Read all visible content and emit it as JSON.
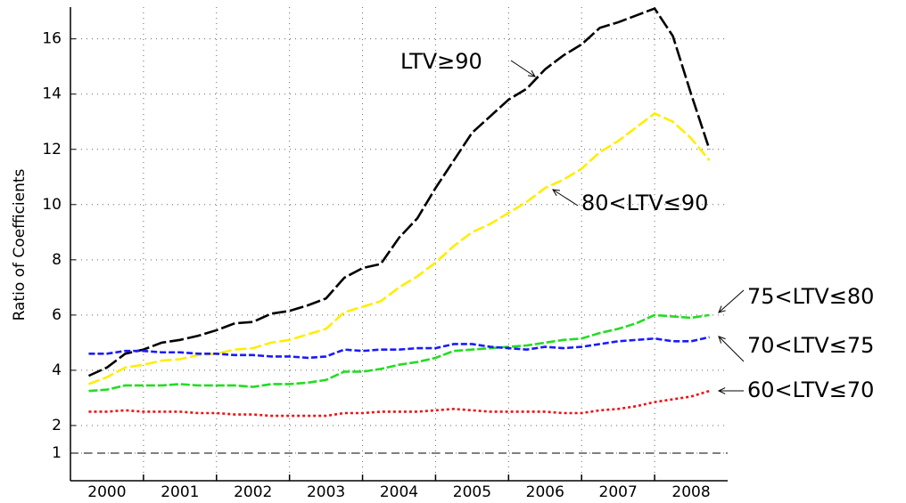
{
  "chart_data": {
    "type": "line",
    "y_label": "Ratio of Coefficients",
    "x": [
      2000.25,
      2000.5,
      2000.75,
      2001,
      2001.25,
      2001.5,
      2001.75,
      2002,
      2002.25,
      2002.5,
      2002.75,
      2003,
      2003.25,
      2003.5,
      2003.75,
      2004,
      2004.25,
      2004.5,
      2004.75,
      2005,
      2005.25,
      2005.5,
      2005.75,
      2006,
      2006.25,
      2006.5,
      2006.75,
      2007,
      2007.25,
      2007.5,
      2007.75,
      2008,
      2008.25,
      2008.5,
      2008.75
    ],
    "xlim": [
      2000,
      2009
    ],
    "xticks": [
      2000,
      2001,
      2002,
      2003,
      2004,
      2005,
      2006,
      2007,
      2008
    ],
    "ylim": [
      0,
      17.15
    ],
    "yticks": [
      1,
      2,
      4,
      6,
      8,
      10,
      12,
      14,
      16
    ],
    "reference_line": 1,
    "grid": true,
    "series": [
      {
        "name": "LTV≥90",
        "color": "#000000",
        "dash": "16,4",
        "values": [
          3.8,
          4.1,
          4.6,
          4.75,
          5.0,
          5.1,
          5.25,
          5.45,
          5.7,
          5.75,
          6.05,
          6.15,
          6.35,
          6.6,
          7.35,
          7.7,
          7.85,
          8.8,
          9.5,
          10.6,
          11.6,
          12.6,
          13.2,
          13.8,
          14.2,
          14.9,
          15.4,
          15.8,
          16.4,
          16.6,
          16.85,
          17.1,
          16.1,
          14.0,
          12.0
        ]
      },
      {
        "name": "80<LTV≤90",
        "color": "#ffee00",
        "dash": "13,4",
        "values": [
          3.5,
          3.75,
          4.1,
          4.2,
          4.35,
          4.4,
          4.55,
          4.6,
          4.75,
          4.8,
          5.0,
          5.1,
          5.3,
          5.5,
          6.1,
          6.3,
          6.5,
          7.0,
          7.4,
          7.9,
          8.5,
          9.0,
          9.3,
          9.7,
          10.1,
          10.6,
          10.9,
          11.3,
          11.9,
          12.3,
          12.8,
          13.3,
          13.0,
          12.4,
          11.6
        ]
      },
      {
        "name": "75<LTV≤80",
        "color": "#22dd22",
        "dash": "10,3",
        "values": [
          3.25,
          3.3,
          3.45,
          3.45,
          3.45,
          3.5,
          3.45,
          3.45,
          3.45,
          3.4,
          3.5,
          3.5,
          3.55,
          3.65,
          3.95,
          3.95,
          4.05,
          4.2,
          4.3,
          4.45,
          4.7,
          4.75,
          4.8,
          4.85,
          4.9,
          5.0,
          5.1,
          5.15,
          5.35,
          5.5,
          5.7,
          6.0,
          5.95,
          5.9,
          6.0
        ]
      },
      {
        "name": "70<LTV≤75",
        "color": "#1a1aff",
        "dash": "7,3",
        "values": [
          4.6,
          4.6,
          4.7,
          4.7,
          4.65,
          4.65,
          4.6,
          4.6,
          4.55,
          4.55,
          4.5,
          4.5,
          4.45,
          4.5,
          4.75,
          4.7,
          4.75,
          4.75,
          4.8,
          4.8,
          4.95,
          4.95,
          4.85,
          4.8,
          4.75,
          4.85,
          4.8,
          4.85,
          4.95,
          5.05,
          5.1,
          5.15,
          5.05,
          5.05,
          5.2
        ]
      },
      {
        "name": "60<LTV≤70",
        "color": "#ee1111",
        "dash": "3,3",
        "values": [
          2.5,
          2.5,
          2.55,
          2.5,
          2.5,
          2.5,
          2.45,
          2.45,
          2.4,
          2.4,
          2.35,
          2.35,
          2.35,
          2.35,
          2.45,
          2.45,
          2.5,
          2.5,
          2.5,
          2.55,
          2.6,
          2.55,
          2.5,
          2.5,
          2.5,
          2.5,
          2.45,
          2.45,
          2.55,
          2.6,
          2.7,
          2.85,
          2.95,
          3.05,
          3.25
        ]
      }
    ]
  }
}
